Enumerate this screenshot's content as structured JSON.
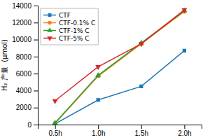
{
  "chart_data": {
    "type": "line",
    "ylabel": "H₂ 产量  (μmol)",
    "x": [
      0.5,
      1.0,
      1.5,
      2.0
    ],
    "xlim": [
      0.3,
      2.2
    ],
    "xticks": [
      {
        "value": 0.5,
        "label": "0.5h"
      },
      {
        "value": 1.0,
        "label": "1.0h"
      },
      {
        "value": 1.5,
        "label": "1.5h"
      },
      {
        "value": 2.0,
        "label": "2.0h"
      }
    ],
    "ylim": [
      0,
      14000
    ],
    "yticks": [
      0,
      2000,
      4000,
      6000,
      8000,
      10000,
      12000,
      14000
    ],
    "series": [
      {
        "name": "CTF",
        "marker": "square",
        "values": [
          100,
          2900,
          4500,
          8700
        ]
      },
      {
        "name": "CTF-0.1% C",
        "marker": "circle",
        "values": [
          150,
          5700,
          9500,
          13300
        ]
      },
      {
        "name": "CTF-1% C",
        "marker": "triangle-up",
        "values": [
          200,
          5800,
          9600,
          13400
        ]
      },
      {
        "name": "CTF-5% C",
        "marker": "triangle-down",
        "values": [
          2800,
          6800,
          9500,
          13500
        ]
      }
    ],
    "legend": "upper-left",
    "grid": false
  }
}
